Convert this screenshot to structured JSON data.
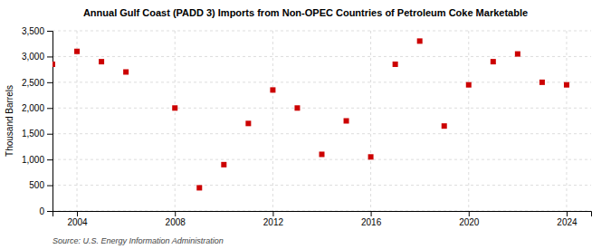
{
  "chart_data": {
    "type": "scatter",
    "title": "Annual Gulf Coast (PADD 3) Imports from Non-OPEC Countries of Petroleum Coke Marketable",
    "y_label": "Thousand Barrels",
    "annotations": [
      "Source: U.S. Energy Information Administration"
    ],
    "x": [
      2003,
      2004,
      2005,
      2006,
      2008,
      2009,
      2010,
      2011,
      2012,
      2013,
      2014,
      2015,
      2016,
      2017,
      2018,
      2019,
      2020,
      2021,
      2022,
      2023,
      2024
    ],
    "values": [
      2850,
      3100,
      2900,
      2700,
      2000,
      450,
      900,
      1700,
      2350,
      2000,
      1100,
      1750,
      1050,
      2850,
      3300,
      1650,
      2450,
      2900,
      3050,
      2500,
      2450
    ],
    "color": "#cc0000",
    "marker": "square",
    "xlim": [
      2003,
      2025
    ],
    "ylim": [
      0,
      3500
    ],
    "xticks": [
      2004,
      2008,
      2012,
      2016,
      2020,
      2024
    ],
    "yticks": [
      0,
      500,
      {
        "value": 1000,
        "label": "1,000"
      },
      {
        "value": 1500,
        "label": "1,500"
      },
      {
        "value": 2000,
        "label": "2,000"
      },
      {
        "value": 2500,
        "label": "2,500"
      },
      {
        "value": 3000,
        "label": "3,000"
      },
      {
        "value": 3500,
        "label": "3,500"
      }
    ],
    "grid": true
  }
}
